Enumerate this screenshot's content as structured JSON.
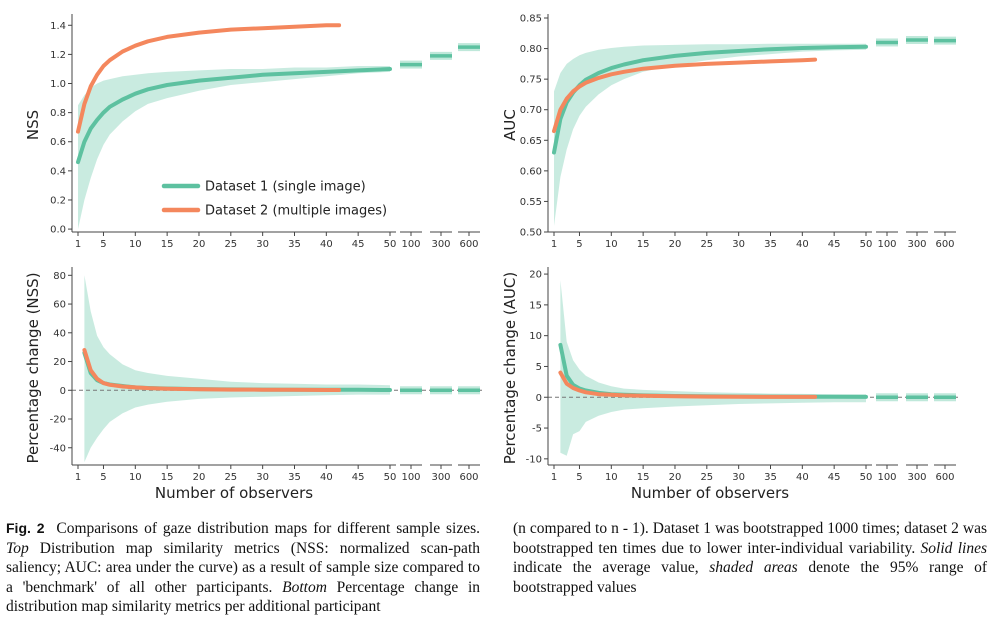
{
  "colors": {
    "dataset1": "#5DC1A0",
    "dataset2": "#F4875D",
    "band": "#BFE8DA"
  },
  "legend": {
    "d1": "Dataset 1 (single image)",
    "d2": "Dataset 2 (multiple images)"
  },
  "xlabel": "Number of observers",
  "caption": {
    "fig_label": "Fig. 2",
    "left_1": "Comparisons of gaze distribution maps for different sample sizes.",
    "top_label": "Top",
    "left_2": "Distribution map similarity metrics (NSS: normalized scan-path saliency; AUC: area under the curve) as a result of sample size compared to a 'benchmark' of all other participants.",
    "bottom_label": "Bottom",
    "left_3": "Percentage change in distribution map similarity metrics per additional participant",
    "right_1": "(n compared to n - 1). Dataset 1 was bootstrapped 1000 times; dataset 2 was bootstrapped ten times due to lower inter-individual variability.",
    "solid_label": "Solid lines",
    "right_2": "indicate the average value,",
    "shaded_label": "shaded areas",
    "right_3": "denote the 95% range of bootstrapped values"
  },
  "chart_data": [
    {
      "id": "nss",
      "type": "line",
      "ylabel": "NSS",
      "ylim": [
        -0.02,
        1.45
      ],
      "yticks": [
        0.0,
        0.2,
        0.4,
        0.6,
        0.8,
        1.0,
        1.2,
        1.4
      ],
      "ytick_labels": [
        "0.0",
        "0.2",
        "0.4",
        "0.6",
        "0.8",
        "1.0",
        "1.2",
        "1.4"
      ],
      "xlim": [
        0,
        51
      ],
      "xticks": [
        1,
        5,
        10,
        15,
        20,
        25,
        30,
        35,
        40,
        45,
        50
      ],
      "xtick_labels": [
        "1",
        "5",
        "10",
        "15",
        "20",
        "25",
        "30",
        "35",
        "40",
        "45",
        "50"
      ],
      "extra_xticks": [
        "100",
        "300",
        "600"
      ],
      "legend": true,
      "zero_line": false,
      "series": [
        {
          "name": "Dataset 1 (single image)",
          "color_key": "dataset1",
          "x": [
            1,
            2,
            3,
            4,
            5,
            6,
            8,
            10,
            12,
            15,
            20,
            25,
            30,
            35,
            40,
            45,
            50
          ],
          "y": [
            0.46,
            0.6,
            0.69,
            0.75,
            0.8,
            0.84,
            0.89,
            0.93,
            0.96,
            0.99,
            1.02,
            1.04,
            1.06,
            1.07,
            1.08,
            1.09,
            1.1
          ],
          "band_low": [
            0.0,
            0.2,
            0.35,
            0.48,
            0.58,
            0.65,
            0.74,
            0.81,
            0.86,
            0.9,
            0.95,
            0.99,
            1.01,
            1.03,
            1.05,
            1.07,
            1.08
          ],
          "band_high": [
            0.85,
            0.92,
            0.97,
            1.0,
            1.02,
            1.03,
            1.05,
            1.06,
            1.07,
            1.08,
            1.09,
            1.1,
            1.1,
            1.11,
            1.11,
            1.12,
            1.12
          ],
          "extra": [
            1.13,
            1.19,
            1.25
          ]
        },
        {
          "name": "Dataset 2 (multiple images)",
          "color_key": "dataset2",
          "x": [
            1,
            2,
            3,
            4,
            5,
            6,
            8,
            10,
            12,
            15,
            20,
            25,
            30,
            35,
            40,
            42
          ],
          "y": [
            0.67,
            0.86,
            0.98,
            1.06,
            1.12,
            1.16,
            1.22,
            1.26,
            1.29,
            1.32,
            1.35,
            1.37,
            1.38,
            1.39,
            1.4,
            1.4
          ]
        }
      ]
    },
    {
      "id": "auc",
      "type": "line",
      "ylabel": "AUC",
      "ylim": [
        0.5,
        0.85
      ],
      "yticks": [
        0.5,
        0.55,
        0.6,
        0.65,
        0.7,
        0.75,
        0.8,
        0.85
      ],
      "ytick_labels": [
        "0.50",
        "0.55",
        "0.60",
        "0.65",
        "0.70",
        "0.75",
        "0.80",
        "0.85"
      ],
      "xlim": [
        0,
        51
      ],
      "xticks": [
        1,
        5,
        10,
        15,
        20,
        25,
        30,
        35,
        40,
        45,
        50
      ],
      "xtick_labels": [
        "1",
        "5",
        "10",
        "15",
        "20",
        "25",
        "30",
        "35",
        "40",
        "45",
        "50"
      ],
      "extra_xticks": [
        "100",
        "300",
        "600"
      ],
      "legend": false,
      "zero_line": false,
      "series": [
        {
          "name": "Dataset 1 (single image)",
          "color_key": "dataset1",
          "x": [
            1,
            2,
            3,
            4,
            5,
            6,
            8,
            10,
            12,
            15,
            20,
            25,
            30,
            35,
            40,
            45,
            50
          ],
          "y": [
            0.63,
            0.685,
            0.712,
            0.728,
            0.74,
            0.749,
            0.76,
            0.768,
            0.774,
            0.781,
            0.788,
            0.793,
            0.796,
            0.799,
            0.801,
            0.802,
            0.803
          ],
          "band_low": [
            0.51,
            0.59,
            0.635,
            0.668,
            0.69,
            0.705,
            0.725,
            0.74,
            0.75,
            0.762,
            0.773,
            0.781,
            0.787,
            0.791,
            0.795,
            0.797,
            0.798
          ],
          "band_high": [
            0.73,
            0.76,
            0.775,
            0.783,
            0.789,
            0.793,
            0.798,
            0.801,
            0.803,
            0.805,
            0.806,
            0.807,
            0.807,
            0.808,
            0.808,
            0.808,
            0.808
          ],
          "extra": [
            0.81,
            0.814,
            0.813
          ]
        },
        {
          "name": "Dataset 2 (multiple images)",
          "color_key": "dataset2",
          "x": [
            1,
            2,
            3,
            4,
            5,
            6,
            8,
            10,
            12,
            15,
            20,
            25,
            30,
            35,
            40,
            42
          ],
          "y": [
            0.665,
            0.7,
            0.718,
            0.73,
            0.738,
            0.744,
            0.752,
            0.758,
            0.762,
            0.767,
            0.772,
            0.775,
            0.777,
            0.779,
            0.781,
            0.782
          ]
        }
      ]
    },
    {
      "id": "pct-nss",
      "type": "line",
      "ylabel": "Percentage change (NSS)",
      "ylim": [
        -52,
        83
      ],
      "yticks": [
        -40,
        -20,
        0,
        20,
        40,
        60,
        80
      ],
      "ytick_labels": [
        "-40",
        "-20",
        "0",
        "20",
        "40",
        "60",
        "80"
      ],
      "xlim": [
        0,
        51
      ],
      "xticks": [
        1,
        5,
        10,
        15,
        20,
        25,
        30,
        35,
        40,
        45,
        50
      ],
      "xtick_labels": [
        "1",
        "5",
        "10",
        "15",
        "20",
        "25",
        "30",
        "35",
        "40",
        "45",
        "50"
      ],
      "extra_xticks": [
        "100",
        "300",
        "600"
      ],
      "legend": false,
      "zero_line": true,
      "series": [
        {
          "name": "Dataset 1 (single image)",
          "color_key": "dataset1",
          "x": [
            2,
            3,
            4,
            5,
            6,
            8,
            10,
            12,
            15,
            20,
            25,
            30,
            35,
            40,
            45,
            50
          ],
          "y": [
            26,
            12,
            7,
            5,
            4,
            3,
            2,
            1.6,
            1.2,
            0.8,
            0.6,
            0.5,
            0.4,
            0.3,
            0.3,
            0.2
          ],
          "band_low": [
            -50,
            -40,
            -33,
            -27,
            -22,
            -16,
            -12,
            -10,
            -8,
            -6,
            -5,
            -4.5,
            -4,
            -3.5,
            -3,
            -3
          ],
          "band_high": [
            80,
            55,
            38,
            30,
            25,
            18,
            14,
            12,
            10,
            8,
            6,
            5,
            4.5,
            4,
            4,
            3.5
          ],
          "extra": [
            0,
            0,
            0
          ]
        },
        {
          "name": "Dataset 2 (multiple images)",
          "color_key": "dataset2",
          "x": [
            2,
            3,
            4,
            5,
            6,
            8,
            10,
            12,
            15,
            20,
            25,
            30,
            35,
            40,
            42
          ],
          "y": [
            28,
            14,
            8,
            5,
            3.8,
            2.6,
            2,
            1.5,
            1.1,
            0.7,
            0.5,
            0.4,
            0.3,
            0.2,
            0.2
          ]
        }
      ]
    },
    {
      "id": "pct-auc",
      "type": "line",
      "ylabel": "Percentage change (AUC)",
      "ylim": [
        -11,
        20.5
      ],
      "yticks": [
        -10,
        -5,
        0,
        5,
        10,
        15,
        20
      ],
      "ytick_labels": [
        "-10",
        "-5",
        "0",
        "5",
        "10",
        "15",
        "20"
      ],
      "xlim": [
        0,
        51
      ],
      "xticks": [
        1,
        5,
        10,
        15,
        20,
        25,
        30,
        35,
        40,
        45,
        50
      ],
      "xtick_labels": [
        "1",
        "5",
        "10",
        "15",
        "20",
        "25",
        "30",
        "35",
        "40",
        "45",
        "50"
      ],
      "extra_xticks": [
        "100",
        "300",
        "600"
      ],
      "legend": false,
      "zero_line": true,
      "series": [
        {
          "name": "Dataset 1 (single image)",
          "color_key": "dataset1",
          "x": [
            2,
            3,
            4,
            5,
            6,
            8,
            10,
            12,
            15,
            20,
            25,
            30,
            35,
            40,
            45,
            50
          ],
          "y": [
            8.5,
            3.5,
            2,
            1.4,
            1.1,
            0.7,
            0.5,
            0.4,
            0.3,
            0.2,
            0.15,
            0.12,
            0.1,
            0.08,
            0.07,
            0.06
          ],
          "band_low": [
            -9,
            -9.5,
            -6,
            -5.5,
            -4,
            -3,
            -2.4,
            -2,
            -1.8,
            -1.5,
            -1.3,
            -1.1,
            -1,
            -0.9,
            -0.8,
            -0.8
          ],
          "band_high": [
            19,
            9,
            6,
            4.5,
            3.5,
            2.4,
            1.8,
            1.4,
            1.2,
            1,
            0.8,
            0.7,
            0.6,
            0.55,
            0.5,
            0.5
          ],
          "extra": [
            0,
            0,
            0
          ]
        },
        {
          "name": "Dataset 2 (multiple images)",
          "color_key": "dataset2",
          "x": [
            2,
            3,
            4,
            5,
            6,
            8,
            10,
            12,
            15,
            20,
            25,
            30,
            35,
            40,
            42
          ],
          "y": [
            4,
            2.2,
            1.5,
            1.1,
            0.8,
            0.5,
            0.4,
            0.3,
            0.25,
            0.15,
            0.1,
            0.08,
            0.06,
            0.05,
            0.05
          ]
        }
      ]
    }
  ]
}
